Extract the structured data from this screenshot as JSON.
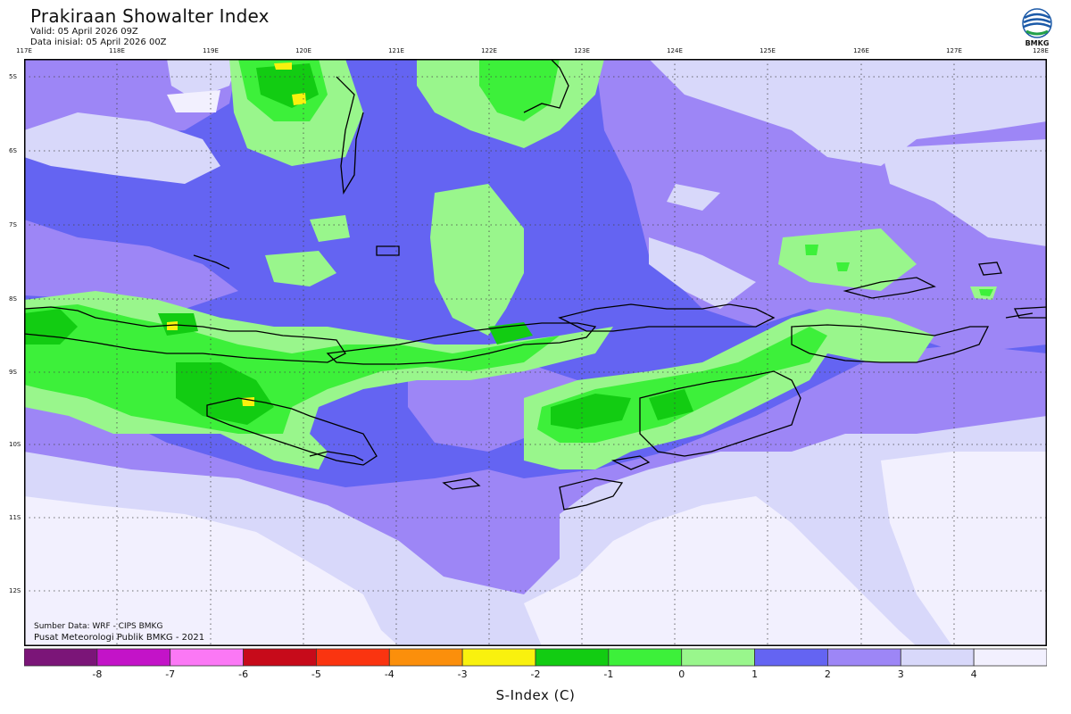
{
  "header": {
    "title": "Prakiraan Showalter Index",
    "valid": "Valid: 05 April 2026 09Z",
    "initial": "Data inisial: 05 April 2026 00Z"
  },
  "logo": {
    "icon": "bmkg-logo-icon",
    "label": "BMKG"
  },
  "map": {
    "lon_labels": [
      "117E",
      "118E",
      "119E",
      "120E",
      "121E",
      "122E",
      "123E",
      "124E",
      "125E",
      "126E",
      "127E",
      "128E"
    ],
    "lat_labels": [
      "5S",
      "6S",
      "7S",
      "8S",
      "9S",
      "10S",
      "11S",
      "12S"
    ],
    "grid": true,
    "lon_range": [
      117,
      128
    ],
    "lat_range": [
      -4.8,
      -12.8
    ]
  },
  "credits": {
    "source": "Sumber Data: WRF - CIPS BMKG",
    "center": "Pusat Meteorologi Publik BMKG - 2021"
  },
  "legend": {
    "ticks": [
      "-8",
      "-7",
      "-6",
      "-5",
      "-4",
      "-3",
      "-2",
      "-1",
      "0",
      "1",
      "2",
      "3",
      "4"
    ],
    "colors": [
      "#7b1578",
      "#c313c8",
      "#fb78f5",
      "#c70a1a",
      "#fa3410",
      "#fb8f0b",
      "#f9f10e",
      "#12cc12",
      "#3df03a",
      "#99f68c",
      "#6464f2",
      "#9d86f6",
      "#d8d8fa",
      "#f2f0fe"
    ],
    "title": "S-Index (C)"
  }
}
